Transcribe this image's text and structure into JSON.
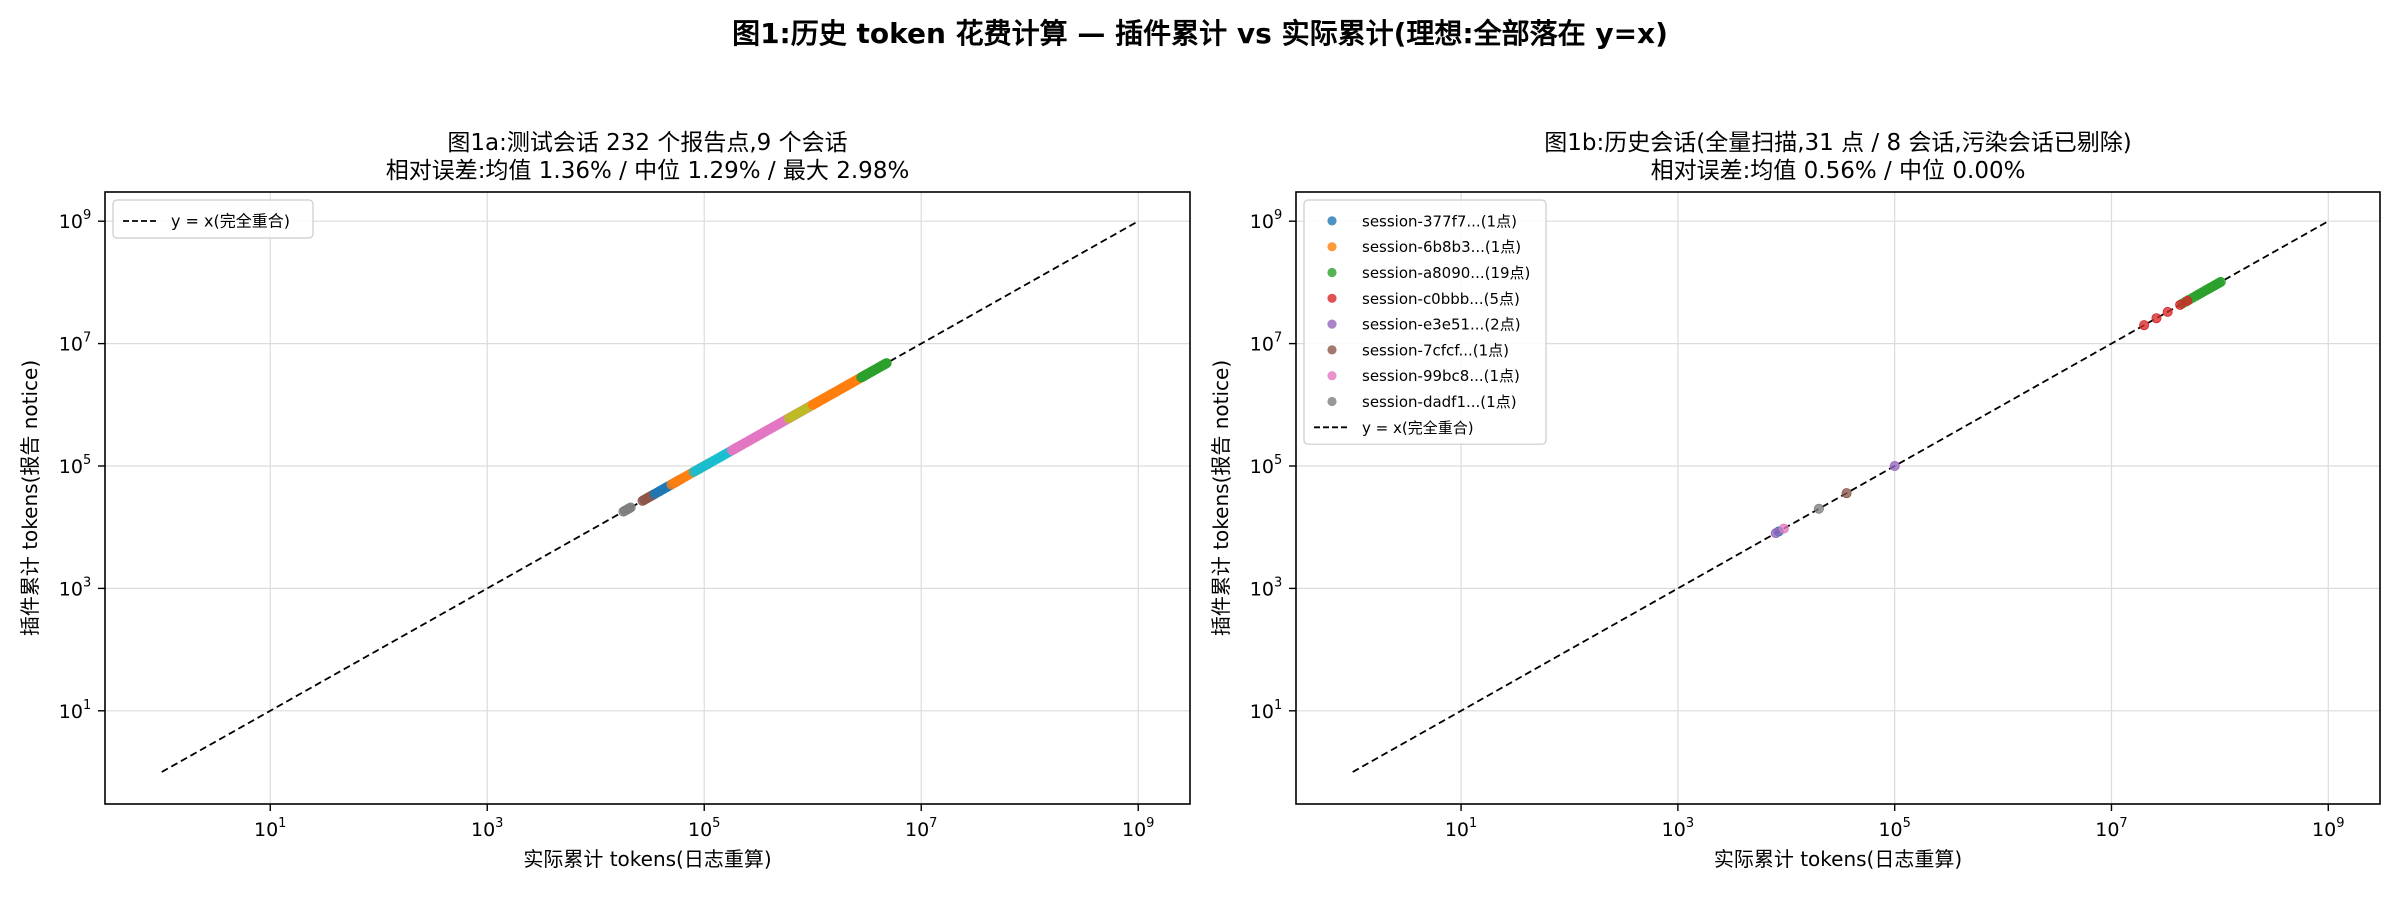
{
  "figure": {
    "suptitle": "图1:历史 token 花费计算 — 插件累计 vs 实际累计(理想:全部落在 y=x)"
  },
  "chart_data": [
    {
      "type": "scatter",
      "title": "图1a:测试会话 232 个报告点,9 个会话",
      "subtitle": "相对误差:均值 1.36% / 中位 1.29% / 最大 2.98%",
      "xlabel": "实际累计 tokens(日志重算)",
      "ylabel": "插件累计 tokens(报告 notice)",
      "xscale": "log",
      "yscale": "log",
      "xlim": [
        0.3,
        3000000000.0
      ],
      "ylim": [
        0.3,
        3000000000.0
      ],
      "grid": true,
      "xticks": [
        {
          "base": "10",
          "exp": "1",
          "value": 10
        },
        {
          "base": "10",
          "exp": "3",
          "value": 1000
        },
        {
          "base": "10",
          "exp": "5",
          "value": 100000
        },
        {
          "base": "10",
          "exp": "7",
          "value": 10000000
        },
        {
          "base": "10",
          "exp": "9",
          "value": 1000000000
        }
      ],
      "yticks": [
        {
          "base": "10",
          "exp": "1",
          "value": 10
        },
        {
          "base": "10",
          "exp": "3",
          "value": 1000
        },
        {
          "base": "10",
          "exp": "5",
          "value": 100000
        },
        {
          "base": "10",
          "exp": "7",
          "value": 10000000
        },
        {
          "base": "10",
          "exp": "9",
          "value": 1000000000
        }
      ],
      "legend": {
        "placement": "upper-left",
        "entries": [
          {
            "label": "y = x(完全重合)",
            "style": "dashed",
            "color": "#000000"
          }
        ]
      },
      "reference_line": {
        "from": 1,
        "to": 1000000000,
        "color": "#000000",
        "style": "dashed"
      },
      "series": [
        {
          "color": "#7f7f7f",
          "range": [
            18000,
            21000
          ],
          "count": 6
        },
        {
          "color": "#8c564b",
          "range": [
            27000,
            34000
          ],
          "count": 8
        },
        {
          "color": "#1f77b4",
          "range": [
            35000,
            60000
          ],
          "count": 12
        },
        {
          "color": "#ff7f0e",
          "range": [
            50000,
            110000
          ],
          "count": 14
        },
        {
          "color": "#17becf",
          "range": [
            80000,
            200000
          ],
          "count": 16
        },
        {
          "color": "#e377c2",
          "range": [
            180000,
            1100000
          ],
          "count": 60
        },
        {
          "color": "#bcbd22",
          "range": [
            600000,
            1500000
          ],
          "count": 14
        },
        {
          "color": "#ff7f0e",
          "range": [
            1000000,
            3200000
          ],
          "count": 60
        },
        {
          "color": "#2ca02c",
          "range": [
            2800000,
            4800000
          ],
          "count": 42
        }
      ]
    },
    {
      "type": "scatter",
      "title": "图1b:历史会话(全量扫描,31 点 / 8 会话,污染会话已剔除)",
      "subtitle": "相对误差:均值 0.56% / 中位 0.00%",
      "xlabel": "实际累计 tokens(日志重算)",
      "ylabel": "插件累计 tokens(报告 notice)",
      "xscale": "log",
      "yscale": "log",
      "xlim": [
        0.3,
        3000000000.0
      ],
      "ylim": [
        0.3,
        3000000000.0
      ],
      "grid": true,
      "xticks": [
        {
          "base": "10",
          "exp": "1",
          "value": 10
        },
        {
          "base": "10",
          "exp": "3",
          "value": 1000
        },
        {
          "base": "10",
          "exp": "5",
          "value": 100000
        },
        {
          "base": "10",
          "exp": "7",
          "value": 10000000
        },
        {
          "base": "10",
          "exp": "9",
          "value": 1000000000
        }
      ],
      "yticks": [
        {
          "base": "10",
          "exp": "1",
          "value": 10
        },
        {
          "base": "10",
          "exp": "3",
          "value": 1000
        },
        {
          "base": "10",
          "exp": "5",
          "value": 100000
        },
        {
          "base": "10",
          "exp": "7",
          "value": 10000000
        },
        {
          "base": "10",
          "exp": "9",
          "value": 1000000000
        }
      ],
      "legend": {
        "placement": "upper-left",
        "entries": [
          {
            "label": "session-377f7...(1点)",
            "style": "marker",
            "color": "#1f77b4"
          },
          {
            "label": "session-6b8b3...(1点)",
            "style": "marker",
            "color": "#ff7f0e"
          },
          {
            "label": "session-a8090...(19点)",
            "style": "marker",
            "color": "#2ca02c"
          },
          {
            "label": "session-c0bbb...(5点)",
            "style": "marker",
            "color": "#d62728"
          },
          {
            "label": "session-e3e51...(2点)",
            "style": "marker",
            "color": "#9467bd"
          },
          {
            "label": "session-7cfcf...(1点)",
            "style": "marker",
            "color": "#8c564b"
          },
          {
            "label": "session-99bc8...(1点)",
            "style": "marker",
            "color": "#e377c2"
          },
          {
            "label": "session-dadf1...(1点)",
            "style": "marker",
            "color": "#7f7f7f"
          },
          {
            "label": "y = x(完全重合)",
            "style": "dashed",
            "color": "#000000"
          }
        ]
      },
      "reference_line": {
        "from": 1,
        "to": 1000000000,
        "color": "#000000",
        "style": "dashed"
      },
      "series": [
        {
          "name": "session-377f7...(1点)",
          "color": "#1f77b4",
          "points": [
            [
              8500,
              8500
            ]
          ]
        },
        {
          "name": "session-6b8b3...(1点)",
          "color": "#ff7f0e",
          "points": [
            [
              80000000,
              80000000
            ]
          ]
        },
        {
          "name": "session-a8090...(19点)",
          "color": "#2ca02c",
          "points": [
            [
              45000000,
              45000000
            ],
            [
              48000000,
              48000000
            ],
            [
              52000000,
              52000000
            ],
            [
              56000000,
              56000000
            ],
            [
              60000000,
              60000000
            ],
            [
              63000000,
              63000000
            ],
            [
              66000000,
              66000000
            ],
            [
              69000000,
              69000000
            ],
            [
              72000000,
              72000000
            ],
            [
              75000000,
              75000000
            ],
            [
              78000000,
              78000000
            ],
            [
              81000000,
              81000000
            ],
            [
              84000000,
              84000000
            ],
            [
              87000000,
              87000000
            ],
            [
              90000000,
              90000000
            ],
            [
              93000000,
              93000000
            ],
            [
              96000000,
              96000000
            ],
            [
              99000000,
              99000000
            ],
            [
              102000000,
              102000000
            ]
          ]
        },
        {
          "name": "session-c0bbb...(5点)",
          "color": "#d62728",
          "points": [
            [
              20000000,
              20000000
            ],
            [
              26000000,
              26000000
            ],
            [
              33000000,
              33000000
            ],
            [
              43000000,
              43000000
            ],
            [
              50000000,
              50000000
            ]
          ]
        },
        {
          "name": "session-e3e51...(2点)",
          "color": "#9467bd",
          "points": [
            [
              8000,
              8000
            ],
            [
              100000,
              100000
            ]
          ]
        },
        {
          "name": "session-7cfcf...(1点)",
          "color": "#8c564b",
          "points": [
            [
              36000,
              36000
            ]
          ]
        },
        {
          "name": "session-99bc8...(1点)",
          "color": "#e377c2",
          "points": [
            [
              9500,
              9500
            ]
          ]
        },
        {
          "name": "session-dadf1...(1点)",
          "color": "#7f7f7f",
          "points": [
            [
              20000,
              20000
            ]
          ]
        }
      ]
    }
  ]
}
